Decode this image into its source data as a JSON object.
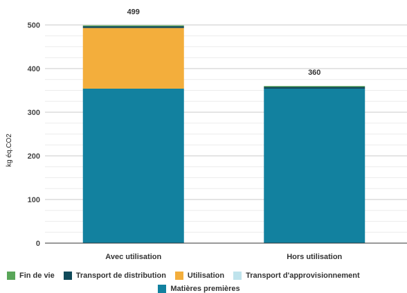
{
  "chart_data": {
    "type": "bar",
    "stacked": true,
    "title": "",
    "xlabel": "",
    "ylabel": "kg éq.CO2",
    "ylim": [
      0,
      500
    ],
    "yticks": [
      0,
      100,
      200,
      300,
      400,
      500
    ],
    "grid": true,
    "legend_position": "bottom",
    "categories": [
      "Avec utilisation",
      "Hors utilisation"
    ],
    "totals": [
      499,
      360
    ],
    "series": [
      {
        "name": "Matières premières",
        "color": "#12819f",
        "values": [
          354,
          354
        ]
      },
      {
        "name": "Transport d'approvisionnement",
        "color": "#bfe3ec",
        "values": [
          0,
          0
        ]
      },
      {
        "name": "Utilisation",
        "color": "#f3ae3c",
        "values": [
          139,
          0
        ]
      },
      {
        "name": "Transport de distribution",
        "color": "#104a5a",
        "values": [
          4,
          4
        ]
      },
      {
        "name": "Fin de vie",
        "color": "#59a659",
        "values": [
          2,
          2
        ]
      }
    ],
    "legend_order_row1": [
      "Fin de vie",
      "Transport de distribution",
      "Utilisation",
      "Transport d'approvisionnement"
    ],
    "legend_order_row2": [
      "Matières premières"
    ]
  }
}
